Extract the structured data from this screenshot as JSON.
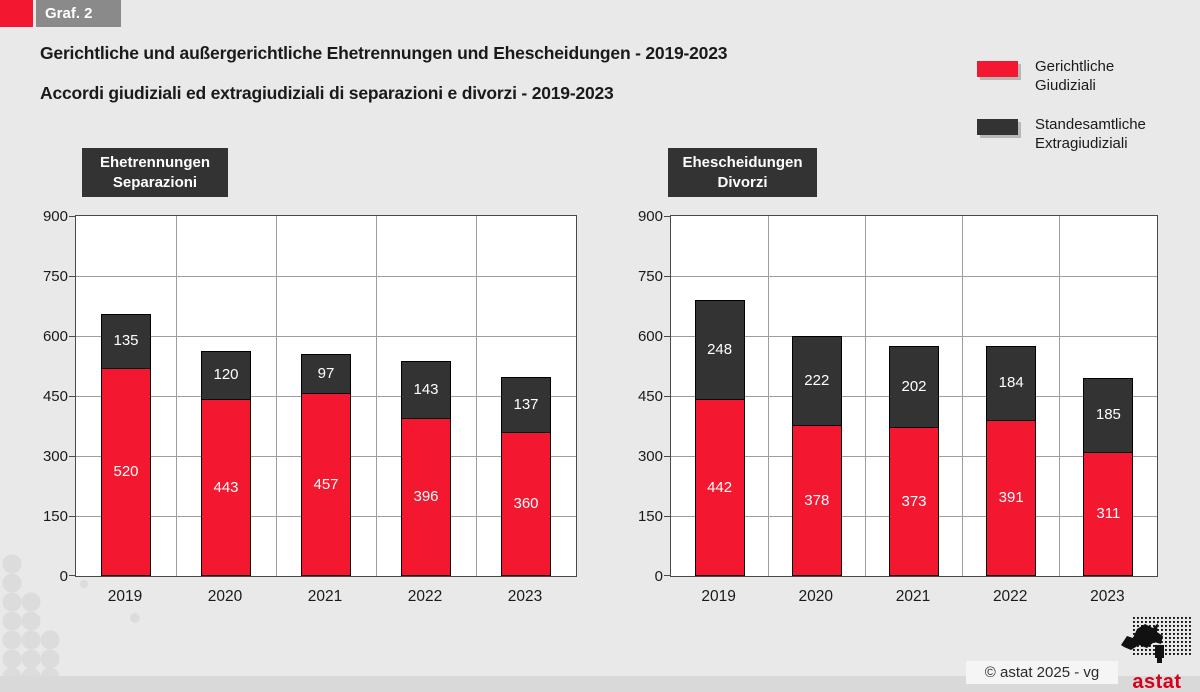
{
  "graf_badge": {
    "label": "Graf. 2",
    "accent_color": "#f3172f",
    "box_color": "#8a8a8a"
  },
  "title": {
    "line1": "Gerichtliche und außergerichtliche Ehetrennungen und Ehescheidungen - 2019-2023",
    "line2": "Accordi giudiziali ed extragiudiziali di separazioni e divorzi - 2019-2023"
  },
  "legend": {
    "position": "top-right",
    "items": [
      {
        "label_de": "Gerichtliche",
        "label_it": "Giudiziali",
        "color": "#f3172f"
      },
      {
        "label_de": "Standesamtliche",
        "label_it": "Extragiudiziali",
        "color": "#333333"
      }
    ]
  },
  "chart_data": [
    {
      "type": "bar",
      "stacked": true,
      "title_de": "Ehetrennungen",
      "title_it": "Separazioni",
      "categories": [
        "2019",
        "2020",
        "2021",
        "2022",
        "2023"
      ],
      "series": [
        {
          "name": "Gerichtliche / Giudiziali",
          "color": "#f3172f",
          "values": [
            520,
            443,
            457,
            396,
            360
          ]
        },
        {
          "name": "Standesamtliche / Extragiudiziali",
          "color": "#333333",
          "values": [
            135,
            120,
            97,
            143,
            137
          ]
        }
      ],
      "ylim": [
        0,
        900
      ],
      "yticks": [
        0,
        150,
        300,
        450,
        600,
        750,
        900
      ],
      "grid": true,
      "data_labels": true
    },
    {
      "type": "bar",
      "stacked": true,
      "title_de": "Ehescheidungen",
      "title_it": "Divorzi",
      "categories": [
        "2019",
        "2020",
        "2021",
        "2022",
        "2023"
      ],
      "series": [
        {
          "name": "Gerichtliche / Giudiziali",
          "color": "#f3172f",
          "values": [
            442,
            378,
            373,
            391,
            311
          ]
        },
        {
          "name": "Standesamtliche / Extragiudiziali",
          "color": "#333333",
          "values": [
            248,
            222,
            202,
            184,
            185
          ]
        }
      ],
      "ylim": [
        0,
        900
      ],
      "yticks": [
        0,
        150,
        300,
        450,
        600,
        750,
        900
      ],
      "grid": true,
      "data_labels": true
    }
  ],
  "footer": {
    "copyright": "© astat 2025 - vg",
    "logo_text": "astat",
    "logo_red": "#d6001c"
  }
}
